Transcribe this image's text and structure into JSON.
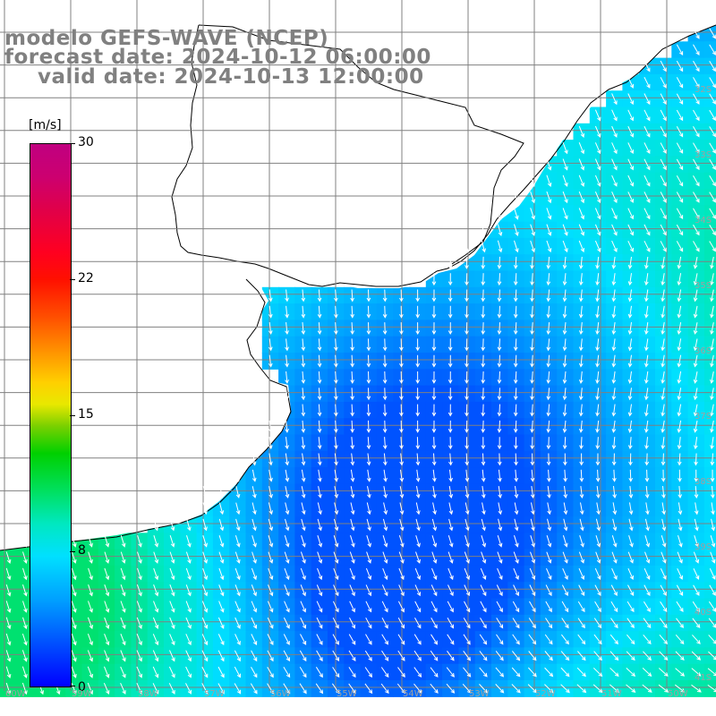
{
  "title": {
    "line1": "modelo GEFS-WAVE (NCEP)",
    "line2": "forecast date: 2024-10-12 06:00:00",
    "line3": "valid date: 2024-10-13 12:00:00"
  },
  "colorbar": {
    "unit": "[m/s]",
    "labels": [
      "30",
      "22",
      "15",
      "8",
      "0"
    ],
    "range": [
      0,
      30
    ],
    "colors": [
      "#0000ff",
      "#00a0ff",
      "#00e0ff",
      "#00d000",
      "#e8e800",
      "#ff9000",
      "#ff1000",
      "#c00080"
    ]
  },
  "lat_labels": [
    "32S",
    "33S",
    "34S",
    "35S",
    "36S",
    "37S",
    "38S",
    "39S",
    "40S",
    "41S"
  ],
  "lon_labels": [
    "60W",
    "59W",
    "58W",
    "57W",
    "56W",
    "55W",
    "54W",
    "53W",
    "52W",
    "51W",
    "50W"
  ],
  "colors": {
    "land": "#ffffff",
    "coast": "#000000",
    "grid": "#808080",
    "arrow": "#ffffff",
    "title": "#808080"
  }
}
